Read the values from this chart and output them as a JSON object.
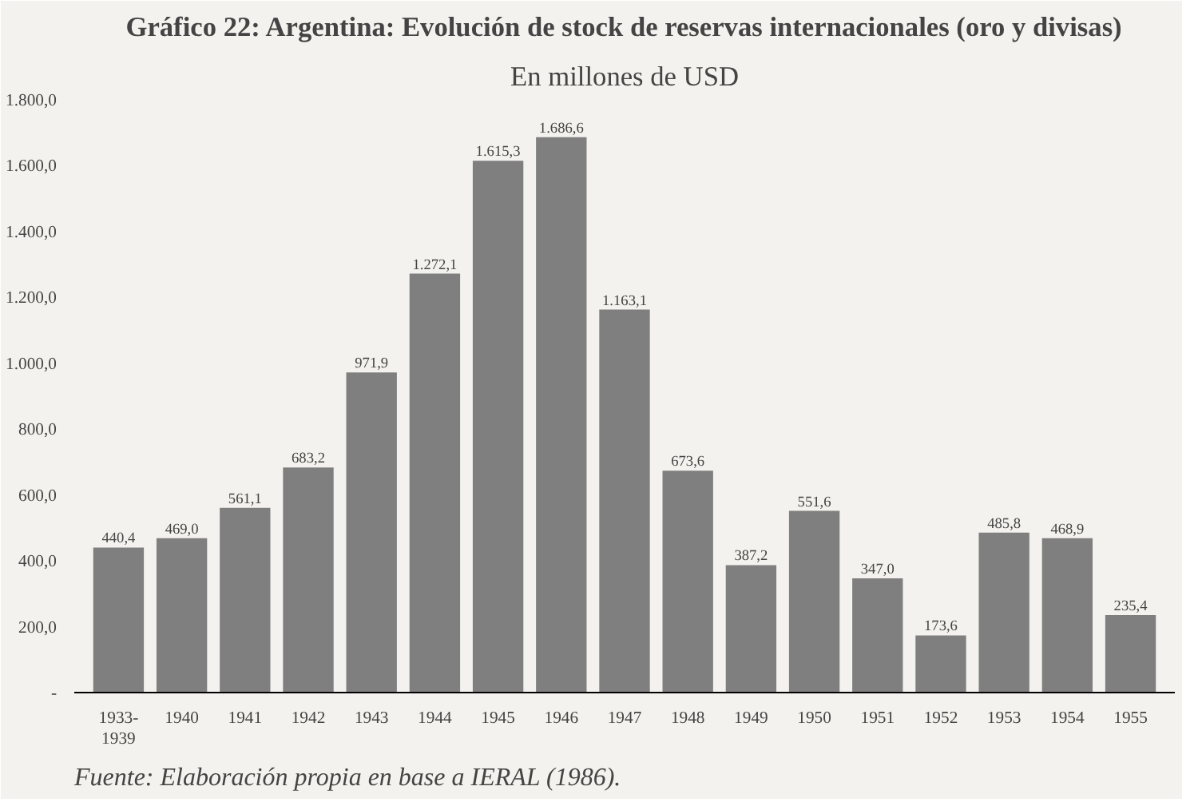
{
  "chart_data": {
    "type": "bar",
    "title": "Gráfico 22: Argentina: Evolución de stock de reservas internacionales (oro y divisas)",
    "subtitle": "En millones de USD",
    "categories": [
      "1933-1939",
      "1940",
      "1941",
      "1942",
      "1943",
      "1944",
      "1945",
      "1946",
      "1947",
      "1948",
      "1949",
      "1950",
      "1951",
      "1952",
      "1953",
      "1954",
      "1955"
    ],
    "values": [
      440.4,
      469.0,
      561.1,
      683.2,
      971.9,
      1272.1,
      1615.3,
      1686.6,
      1163.1,
      673.6,
      387.2,
      551.6,
      347.0,
      173.6,
      485.8,
      468.9,
      235.4
    ],
    "value_labels": [
      "440,4",
      "469,0",
      "561,1",
      "683,2",
      "971,9",
      "1.272,1",
      "1.615,3",
      "1.686,6",
      "1.163,1",
      "673,6",
      "387,2",
      "551,6",
      "347,0",
      "173,6",
      "485,8",
      "468,9",
      "235,4"
    ],
    "color": "#7f7f7f",
    "ylim": [
      0,
      1800
    ],
    "yticks": [
      {
        "value": 0,
        "label": "-"
      },
      {
        "value": 200,
        "label": "200,0"
      },
      {
        "value": 400,
        "label": "400,0"
      },
      {
        "value": 600,
        "label": "600,0"
      },
      {
        "value": 800,
        "label": "800,0"
      },
      {
        "value": 1000,
        "label": "1.000,0"
      },
      {
        "value": 1200,
        "label": "1.200,0"
      },
      {
        "value": 1400,
        "label": "1.400,0"
      },
      {
        "value": 1600,
        "label": "1.600,0"
      },
      {
        "value": 1800,
        "label": "1.800,0"
      }
    ],
    "grid": false,
    "annotations": [
      "Fuente: Elaboración propia en base a IERAL (1986)."
    ]
  }
}
